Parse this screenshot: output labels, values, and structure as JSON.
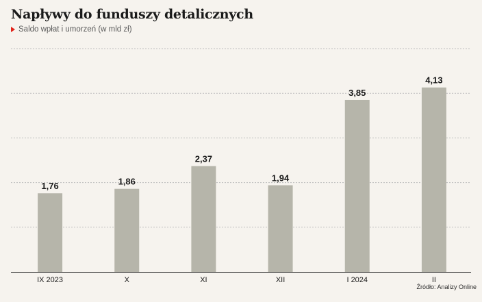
{
  "header": {
    "title": "Napływy do funduszy detalicznych",
    "subtitle": "Saldo wpłat i umorzeń (w mld zł)"
  },
  "source": "Źródło: Analizy Online",
  "colors": {
    "bar": "#b6b5aa",
    "grid": "#bdbdbd",
    "marker": "#e2231a"
  },
  "chart_data": {
    "type": "bar",
    "title": "Napływy do funduszy detalicznych",
    "subtitle": "Saldo wpłat i umorzeń (w mld zł)",
    "categories": [
      "IX 2023",
      "X",
      "XI",
      "XII",
      "I 2024",
      "II"
    ],
    "values": [
      1.76,
      1.86,
      2.37,
      1.94,
      3.85,
      4.13
    ],
    "data_labels": [
      "1,76",
      "1,86",
      "2,37",
      "1,94",
      "3,85",
      "4,13"
    ],
    "ylim": [
      0,
      5
    ],
    "gridlines": [
      1,
      2,
      3,
      4,
      5
    ],
    "grid": true,
    "legend": "none"
  }
}
